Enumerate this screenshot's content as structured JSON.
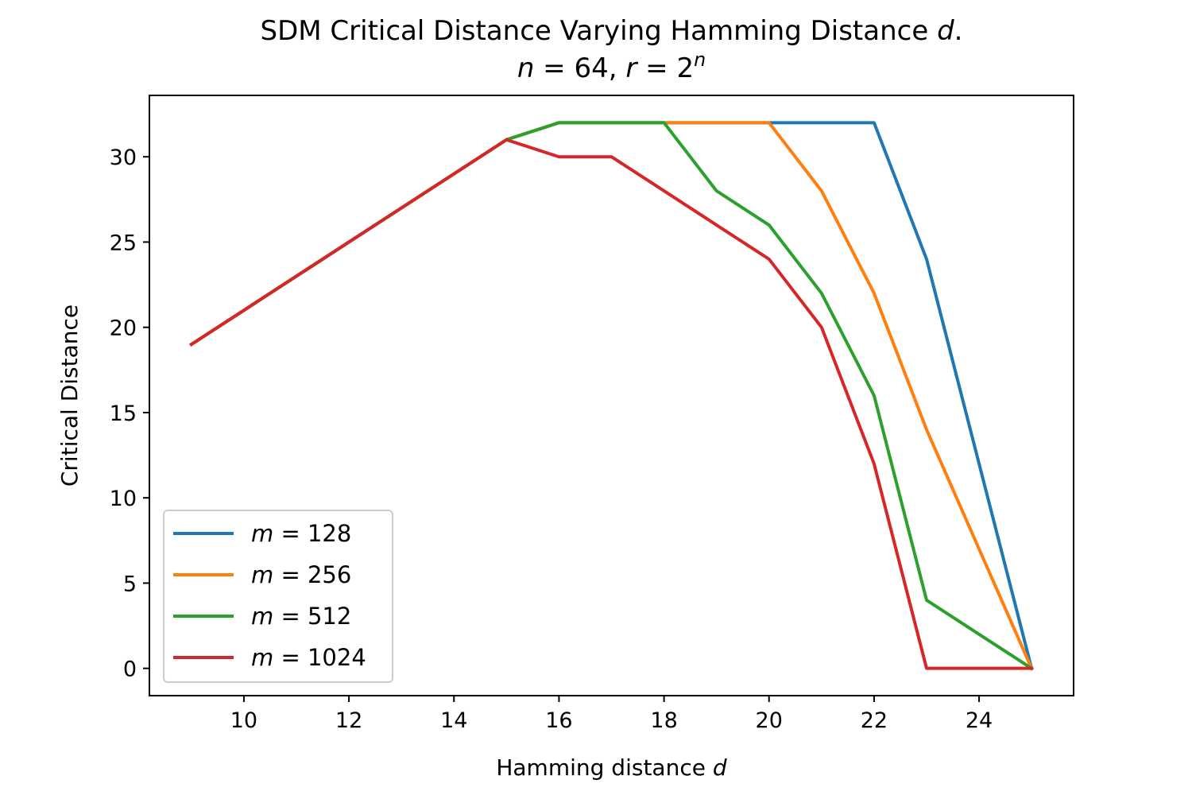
{
  "chart_data": {
    "type": "line",
    "title": "SDM Critical Distance Varying Hamming Distance d.",
    "subtitle": "n = 64, r = 2^n",
    "xlabel": "Hamming distance d",
    "ylabel": "Critical Distance",
    "xlim": [
      8.2,
      25.8
    ],
    "ylim": [
      -1.6,
      33.6
    ],
    "xticks": [
      10,
      12,
      14,
      16,
      18,
      20,
      22,
      24
    ],
    "yticks": [
      0,
      5,
      10,
      15,
      20,
      25,
      30
    ],
    "grid": false,
    "legend_position": "lower-left",
    "x": [
      9,
      10,
      11,
      12,
      13,
      14,
      15,
      16,
      17,
      18,
      19,
      20,
      21,
      22,
      23,
      24,
      25
    ],
    "series": [
      {
        "name": "m = 128",
        "color": "#1f77b4",
        "values": [
          19,
          21,
          23,
          25,
          27,
          29,
          31,
          32,
          32,
          32,
          32,
          32,
          32,
          32,
          24,
          12,
          0
        ]
      },
      {
        "name": "m = 256",
        "color": "#ff7f0e",
        "values": [
          19,
          21,
          23,
          25,
          27,
          29,
          31,
          32,
          32,
          32,
          32,
          32,
          28,
          22,
          14,
          7,
          0
        ]
      },
      {
        "name": "m = 512",
        "color": "#2ca02c",
        "values": [
          19,
          21,
          23,
          25,
          27,
          29,
          31,
          32,
          32,
          32,
          28,
          26,
          22,
          16,
          4,
          2,
          0
        ]
      },
      {
        "name": "m = 1024",
        "color": "#d62728",
        "values": [
          19,
          21,
          23,
          25,
          27,
          29,
          31,
          30,
          30,
          28,
          26,
          24,
          20,
          12,
          0,
          0,
          0
        ]
      }
    ]
  }
}
